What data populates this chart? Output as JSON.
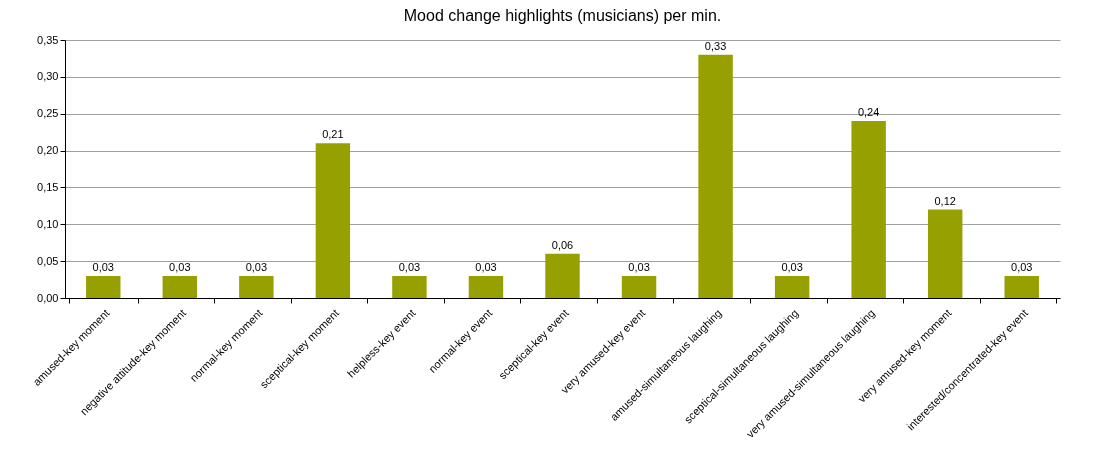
{
  "chart_data": {
    "type": "bar",
    "title": "Mood change highlights (musicians) per min.",
    "categories": [
      "amused-key moment",
      "negative attitude-key moment",
      "normal-key moment",
      "sceptical-key moment",
      "helpless-key event",
      "normal-key event",
      "sceptical-key event",
      "very amused-key event",
      "amused-simultaneous laughing",
      "sceptical-simultaneous laughing",
      "very amused-simultaneous laughing",
      "very amused-key moment",
      "interested/concentrated-key event"
    ],
    "values": [
      0.03,
      0.03,
      0.03,
      0.21,
      0.03,
      0.03,
      0.06,
      0.03,
      0.33,
      0.03,
      0.24,
      0.12,
      0.03
    ],
    "value_labels": [
      "0,03",
      "0,03",
      "0,03",
      "0,21",
      "0,03",
      "0,03",
      "0,06",
      "0,03",
      "0,33",
      "0,03",
      "0,24",
      "0,12",
      "0,03"
    ],
    "color": "#96a000",
    "ylim": [
      0,
      0.35
    ],
    "yticks": [
      {
        "value": 0,
        "label": "0,00"
      },
      {
        "value": 0.05,
        "label": "0,05"
      },
      {
        "value": 0.1,
        "label": "0,10"
      },
      {
        "value": 0.15,
        "label": "0,15"
      },
      {
        "value": 0.2,
        "label": "0,20"
      },
      {
        "value": 0.25,
        "label": "0,25"
      },
      {
        "value": 0.3,
        "label": "0,30"
      },
      {
        "value": 0.35,
        "label": "0,35"
      }
    ],
    "grid": "y"
  }
}
